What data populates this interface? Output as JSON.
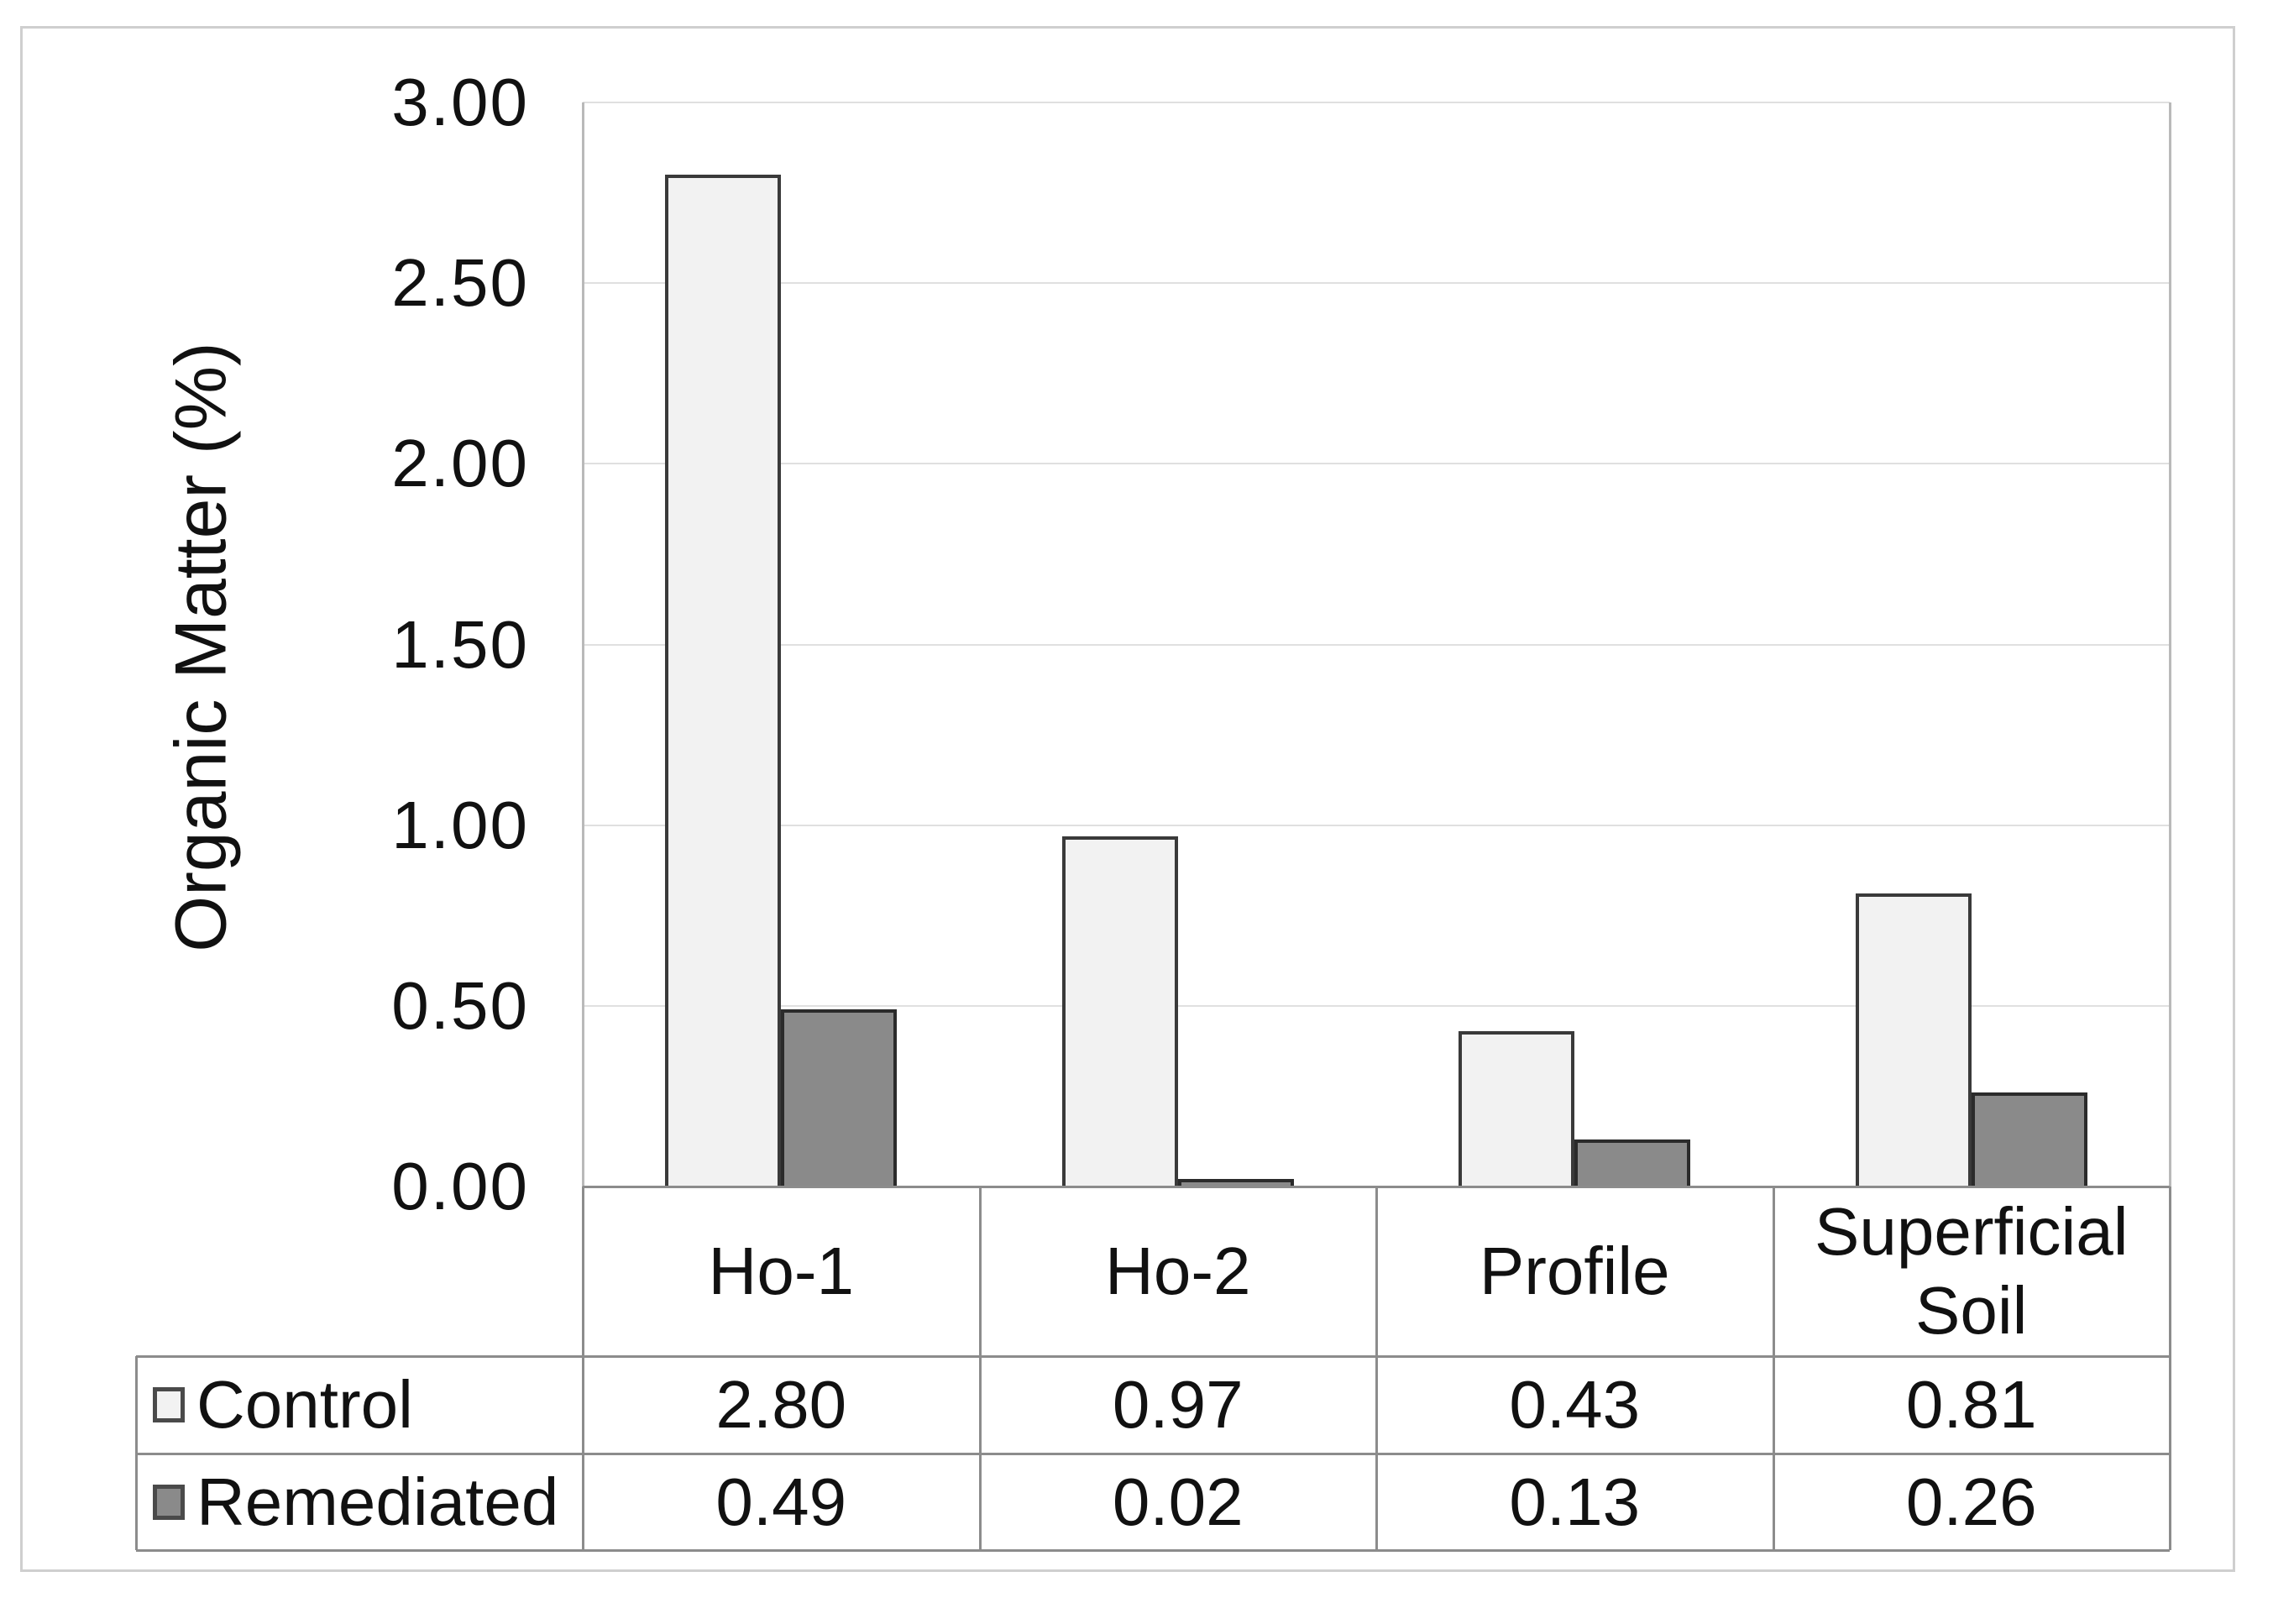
{
  "figure": {
    "background": "#ffffff",
    "border_color": "#cfcfcf"
  },
  "chart_data": {
    "type": "bar",
    "title": "",
    "xlabel": "",
    "ylabel": "Organic Matter (%)",
    "categories": [
      "Ho-1",
      "Ho-2",
      "Profile",
      "Superficial Soil"
    ],
    "series": [
      {
        "name": "Control",
        "values": [
          2.8,
          0.97,
          0.43,
          0.81
        ],
        "display": [
          "2.80",
          "0.97",
          "0.43",
          "0.81"
        ],
        "fill": "#f2f2f2",
        "border": "#3a3a3a"
      },
      {
        "name": "Remediated",
        "values": [
          0.49,
          0.02,
          0.13,
          0.26
        ],
        "display": [
          "0.49",
          "0.02",
          "0.13",
          "0.26"
        ],
        "fill": "#8a8a8a",
        "border": "#2b2b2b"
      }
    ],
    "ylim": [
      0,
      3
    ],
    "ytick_step": 0.5,
    "ytick_labels": [
      "0.00",
      "0.50",
      "1.00",
      "1.50",
      "2.00",
      "2.50",
      "3.00"
    ],
    "grid": true,
    "gridline_color": "#e0e0e0",
    "table_line_color": "#8c8c8c",
    "plot_edge_color": "#b9b9b9",
    "legend_position": "data-table-left",
    "data_table_shown": true
  }
}
